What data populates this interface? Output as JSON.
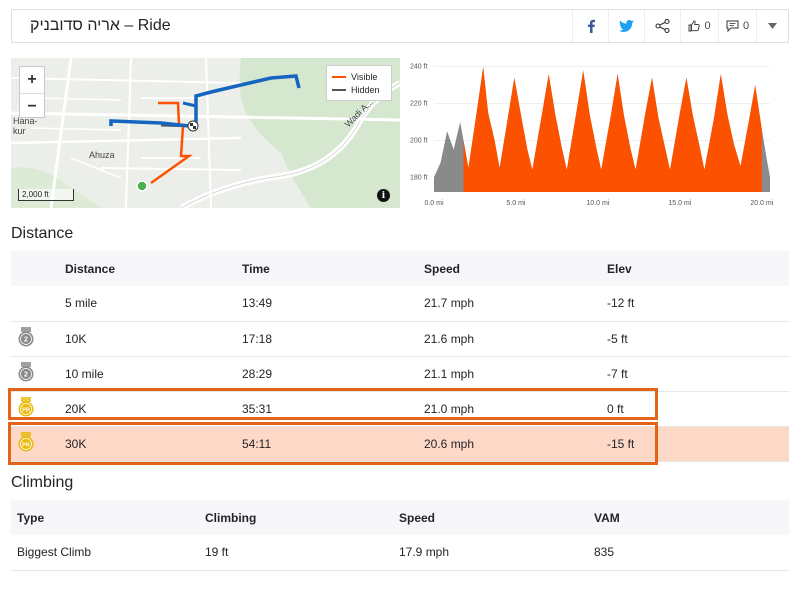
{
  "header": {
    "title": "אריה סדובניק – Ride",
    "kudos_count": "0",
    "comments_count": "0",
    "icons": [
      "facebook-icon",
      "twitter-icon",
      "share-icon",
      "thumbs-up-icon",
      "comment-icon",
      "chevron-down-icon"
    ]
  },
  "map": {
    "legend": {
      "visible": "Visible",
      "hidden": "Hidden"
    },
    "labels": {
      "hanakur": "Hana-\nkur",
      "ahuza": "Ahuza",
      "wadi": "Wadi A..."
    },
    "scale": "2,000 ft",
    "zoom_in": "+",
    "zoom_out": "−",
    "info": "i",
    "colors": {
      "visible": "#fc5200",
      "hidden": "#555555",
      "route": "#1565c0"
    }
  },
  "chart_data": {
    "type": "area",
    "y_ticks": [
      "240 ft",
      "220 ft",
      "200 ft",
      "180 ft"
    ],
    "x_ticks": [
      "0.0 mi",
      "5.0 mi",
      "10.0 mi",
      "15.0 mi",
      "20.0 mi"
    ],
    "ylim": [
      172,
      242
    ],
    "xlim": [
      0,
      20.5
    ],
    "visible_range": [
      1.8,
      20.0
    ],
    "series": [
      {
        "values": [
          [
            0,
            180
          ],
          [
            0.4,
            188
          ],
          [
            0.8,
            205
          ],
          [
            1.2,
            195
          ],
          [
            1.6,
            210
          ],
          [
            1.8,
            200
          ],
          [
            2.1,
            185
          ],
          [
            2.6,
            215
          ],
          [
            3.0,
            240
          ],
          [
            3.3,
            215
          ],
          [
            3.7,
            200
          ],
          [
            4.0,
            185
          ],
          [
            4.5,
            212
          ],
          [
            4.9,
            234
          ],
          [
            5.3,
            214
          ],
          [
            5.7,
            195
          ],
          [
            6.0,
            184
          ],
          [
            6.6,
            215
          ],
          [
            7.0,
            236
          ],
          [
            7.4,
            214
          ],
          [
            7.8,
            196
          ],
          [
            8.1,
            184
          ],
          [
            8.7,
            216
          ],
          [
            9.1,
            238
          ],
          [
            9.5,
            214
          ],
          [
            9.9,
            196
          ],
          [
            10.2,
            184
          ],
          [
            10.8,
            214
          ],
          [
            11.2,
            236
          ],
          [
            11.6,
            213
          ],
          [
            12.0,
            195
          ],
          [
            12.3,
            184
          ],
          [
            12.9,
            215
          ],
          [
            13.3,
            234
          ],
          [
            13.7,
            212
          ],
          [
            14.1,
            196
          ],
          [
            14.4,
            184
          ],
          [
            15.0,
            215
          ],
          [
            15.4,
            234
          ],
          [
            15.8,
            213
          ],
          [
            16.2,
            197
          ],
          [
            16.5,
            184
          ],
          [
            17.1,
            213
          ],
          [
            17.5,
            236
          ],
          [
            17.9,
            214
          ],
          [
            18.3,
            198
          ],
          [
            18.7,
            186
          ],
          [
            19.2,
            210
          ],
          [
            19.6,
            230
          ],
          [
            20.0,
            206
          ],
          [
            20.3,
            190
          ],
          [
            20.5,
            180
          ]
        ]
      }
    ],
    "colors": {
      "visible": "#fc5200",
      "hidden": "#8a8a8a"
    }
  },
  "distance": {
    "title": "Distance",
    "columns": [
      "Distance",
      "Time",
      "Speed",
      "Elev"
    ],
    "rows": [
      {
        "badge": "",
        "distance": "5 mile",
        "time": "13:49",
        "speed": "21.7 mph",
        "elev": "-12 ft"
      },
      {
        "badge": "2",
        "badge_color": "#8a8a8a",
        "distance": "10K",
        "time": "17:18",
        "speed": "21.6 mph",
        "elev": "-5 ft"
      },
      {
        "badge": "2",
        "badge_color": "#8a8a8a",
        "distance": "10 mile",
        "time": "28:29",
        "speed": "21.1 mph",
        "elev": "-7 ft"
      },
      {
        "badge": "PR",
        "badge_color": "#e9b90d",
        "distance": "20K",
        "time": "35:31",
        "speed": "21.0 mph",
        "elev": "0 ft"
      },
      {
        "badge": "PR",
        "badge_color": "#e9b90d",
        "distance": "30K",
        "time": "54:11",
        "speed": "20.6 mph",
        "elev": "-15 ft"
      }
    ]
  },
  "climbing": {
    "title": "Climbing",
    "columns": [
      "Type",
      "Climbing",
      "Speed",
      "VAM"
    ],
    "rows": [
      {
        "type": "Biggest Climb",
        "climbing": "19 ft",
        "speed": "17.9 mph",
        "vam": "835"
      }
    ]
  }
}
